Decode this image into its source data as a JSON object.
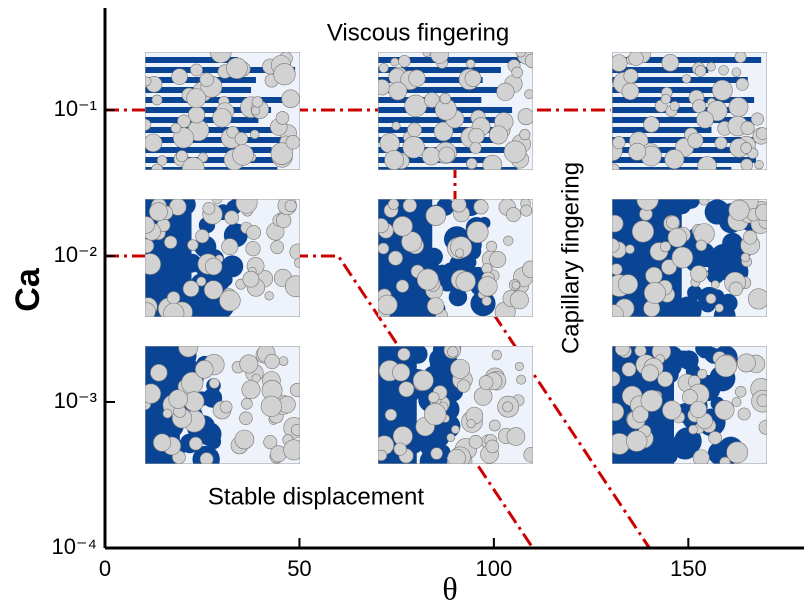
{
  "chart_data": {
    "type": "line",
    "x_label": "θ",
    "y_label": "Ca",
    "xlim": [
      0,
      180
    ],
    "ylim": [
      0.0001,
      0.5
    ],
    "y_scale": "log",
    "xticks": [
      0,
      50,
      100,
      150
    ],
    "yticks": [
      {
        "value": 0.0001,
        "label": "10⁻⁴"
      },
      {
        "value": 0.001,
        "label": "10⁻³"
      },
      {
        "value": 0.01,
        "label": "10⁻²"
      },
      {
        "value": 0.1,
        "label": "10⁻¹"
      }
    ],
    "annotations": [
      "Viscous fingering",
      "Capillary fingering",
      "Stable displacement"
    ],
    "series": [
      {
        "color": "#cc0000",
        "x": [
          0,
          130
        ],
        "values": [
          0.1,
          0.1
        ]
      },
      {
        "color": "#cc0000",
        "x": [
          90,
          90,
          140
        ],
        "values": [
          0.1,
          0.01,
          0.0001
        ]
      },
      {
        "color": "#cc0000",
        "x": [
          0,
          60,
          110
        ],
        "values": [
          0.01,
          0.01,
          0.0001
        ]
      }
    ]
  }
}
